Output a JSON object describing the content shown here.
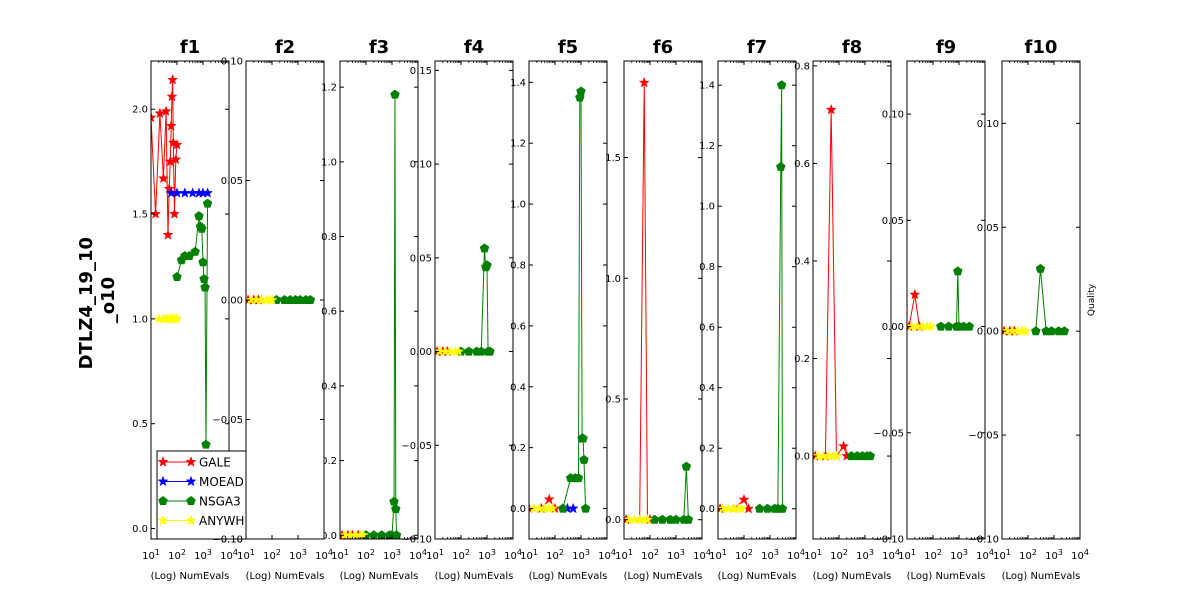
{
  "ylabel_lines": [
    "DTLZ4_19_10",
    "_o10"
  ],
  "right_label": "Quality",
  "series_colors": {
    "GALE": "#ff0000",
    "MOEAD": "#0000ff",
    "NSGA3": "#008000",
    "ANYWHERE": "#ffff00"
  },
  "legend": [
    "GALE",
    "MOEAD",
    "NSGA3",
    "ANYWH"
  ],
  "chart_data": [
    {
      "title": "f1",
      "type": "line",
      "xlabel": "(Log) NumEvals",
      "xscale": "log",
      "xlim": [
        10,
        10000
      ],
      "ylim": [
        -0.05,
        2.23
      ],
      "yticks": [
        0.0,
        0.5,
        1.0,
        1.5,
        2.0
      ],
      "ytick_labels": [
        "0.0",
        "0.5",
        "1.0",
        "1.5",
        "2.0"
      ],
      "series": [
        {
          "name": "GALE",
          "x": [
            10,
            15,
            22,
            30,
            38,
            45,
            50,
            55,
            60,
            64,
            68,
            72,
            80,
            90,
            100
          ],
          "y": [
            1.96,
            1.5,
            1.98,
            1.67,
            1.99,
            1.4,
            1.62,
            1.75,
            1.92,
            2.06,
            2.14,
            1.84,
            1.5,
            1.76,
            1.83
          ]
        },
        {
          "name": "MOEAD",
          "x": [
            60,
            100,
            200,
            400,
            700,
            1000,
            1500
          ],
          "y": [
            1.6,
            1.6,
            1.6,
            1.6,
            1.6,
            1.6,
            1.6
          ]
        },
        {
          "name": "NSGA3",
          "x": [
            100,
            150,
            200,
            300,
            500,
            700,
            800,
            900,
            1000,
            1100,
            1200,
            1300,
            1500
          ],
          "y": [
            1.2,
            1.28,
            1.3,
            1.3,
            1.32,
            1.49,
            1.44,
            1.43,
            1.27,
            1.19,
            1.15,
            0.4,
            1.55
          ]
        },
        {
          "name": "ANYWHERE",
          "x": [
            20,
            30,
            40,
            50,
            60,
            70,
            80,
            100
          ],
          "y": [
            1.0,
            1.0,
            1.0,
            1.0,
            1.0,
            1.0,
            1.0,
            1.0
          ]
        }
      ]
    },
    {
      "title": "f2",
      "type": "line",
      "xlabel": "(Log) NumEvals",
      "xscale": "log",
      "xlim": [
        10,
        10000
      ],
      "ylim": [
        -0.1,
        0.1
      ],
      "yticks": [
        -0.1,
        -0.05,
        0.0,
        0.05,
        0.1
      ],
      "ytick_labels": [
        "−0.10",
        "−0.05",
        "0.00",
        "0.05",
        "0.10"
      ],
      "series": [
        {
          "name": "GALE",
          "x": [
            12,
            20,
            30
          ],
          "y": [
            0.0,
            0.0,
            0.0
          ]
        },
        {
          "name": "NSGA3",
          "x": [
            150,
            300,
            500,
            800,
            1200,
            2000,
            3000
          ],
          "y": [
            0.0,
            0.0,
            0.0,
            0.0,
            0.0,
            0.0,
            0.0
          ]
        },
        {
          "name": "ANYWHERE",
          "x": [
            15,
            25,
            40,
            60,
            80,
            100
          ],
          "y": [
            0.0,
            0.0,
            0.0,
            0.0,
            0.0,
            0.0
          ]
        }
      ]
    },
    {
      "title": "f3",
      "type": "line",
      "xlabel": "(Log) NumEvals",
      "xscale": "log",
      "xlim": [
        10,
        10000
      ],
      "ylim": [
        -0.01,
        1.27
      ],
      "yticks": [
        0.0,
        0.2,
        0.4,
        0.6,
        0.8,
        1.0,
        1.2
      ],
      "ytick_labels": [
        "0.0",
        "0.2",
        "0.4",
        "0.6",
        "0.8",
        "1.0",
        "1.2"
      ],
      "series": [
        {
          "name": "GALE",
          "x": [
            12,
            20,
            30,
            50
          ],
          "y": [
            0.0,
            0.0,
            0.0,
            0.0
          ]
        },
        {
          "name": "NSGA3",
          "x": [
            100,
            200,
            400,
            800,
            1000,
            1200,
            1300,
            1400,
            1500
          ],
          "y": [
            0.0,
            0.0,
            0.0,
            0.0,
            0.0,
            0.09,
            1.18,
            0.07,
            0.0
          ]
        },
        {
          "name": "ANYWHERE",
          "x": [
            15,
            25,
            40,
            60,
            80
          ],
          "y": [
            0.0,
            0.0,
            0.0,
            0.0,
            0.0
          ]
        }
      ]
    },
    {
      "title": "f4",
      "type": "line",
      "xlabel": "(Log) NumEvals",
      "xscale": "log",
      "xlim": [
        10,
        10000
      ],
      "ylim": [
        -0.1,
        0.155
      ],
      "yticks": [
        -0.1,
        -0.05,
        0.0,
        0.05,
        0.1,
        0.15
      ],
      "ytick_labels": [
        "−0.10",
        "−0.05",
        "0.00",
        "0.05",
        "0.10",
        "0.15"
      ],
      "series": [
        {
          "name": "GALE",
          "x": [
            12,
            20,
            30
          ],
          "y": [
            0.0,
            0.0,
            0.0
          ]
        },
        {
          "name": "NSGA3",
          "x": [
            100,
            200,
            400,
            600,
            800,
            900,
            1000,
            1100,
            1300
          ],
          "y": [
            0.0,
            0.0,
            0.0,
            0.0,
            0.055,
            0.045,
            0.046,
            0.0,
            0.0
          ]
        },
        {
          "name": "ANYWHERE",
          "x": [
            15,
            25,
            40,
            60,
            80
          ],
          "y": [
            0.0,
            0.0,
            0.0,
            0.0,
            0.0
          ]
        }
      ]
    },
    {
      "title": "f5",
      "type": "line",
      "xlabel": "(Log) NumEvals",
      "xscale": "log",
      "xlim": [
        10,
        10000
      ],
      "ylim": [
        -0.1,
        1.47
      ],
      "yticks": [
        0.0,
        0.2,
        0.4,
        0.6,
        0.8,
        1.0,
        1.2,
        1.4
      ],
      "ytick_labels": [
        "0.0",
        "0.2",
        "0.4",
        "0.6",
        "0.8",
        "1.0",
        "1.2",
        "1.4"
      ],
      "series": [
        {
          "name": "GALE",
          "x": [
            10,
            30,
            60,
            100
          ],
          "y": [
            0.0,
            0.0,
            0.03,
            0.0
          ]
        },
        {
          "name": "MOEAD",
          "x": [
            300,
            500
          ],
          "y": [
            0.0,
            0.0
          ]
        },
        {
          "name": "NSGA3",
          "x": [
            200,
            400,
            600,
            800,
            900,
            1000,
            1100,
            1200,
            1300,
            1500
          ],
          "y": [
            0.0,
            0.1,
            0.1,
            0.1,
            1.35,
            1.37,
            0.23,
            0.23,
            0.16,
            0.0
          ]
        },
        {
          "name": "ANYWHERE",
          "x": [
            15,
            25,
            40,
            60,
            80
          ],
          "y": [
            0.0,
            0.0,
            0.0,
            0.0,
            0.0
          ]
        }
      ]
    },
    {
      "title": "f6",
      "type": "line",
      "xlabel": "(Log) NumEvals",
      "xscale": "log",
      "xlim": [
        10,
        10000
      ],
      "ylim": [
        -0.08,
        1.9
      ],
      "yticks": [
        0.0,
        0.5,
        1.0,
        1.5
      ],
      "ytick_labels": [
        "0.0",
        "0.5",
        "1.0",
        "1.5"
      ],
      "series": [
        {
          "name": "GALE",
          "x": [
            12,
            40,
            60,
            80,
            100
          ],
          "y": [
            0.0,
            0.0,
            1.81,
            0.0,
            0.0
          ]
        },
        {
          "name": "NSGA3",
          "x": [
            150,
            300,
            600,
            1000,
            2000,
            2500,
            3000
          ],
          "y": [
            0.0,
            0.0,
            0.0,
            0.0,
            0.0,
            0.22,
            0.0
          ]
        },
        {
          "name": "ANYWHERE",
          "x": [
            15,
            25,
            40,
            60,
            80
          ],
          "y": [
            0.0,
            0.0,
            0.0,
            0.0,
            0.0
          ]
        }
      ]
    },
    {
      "title": "f7",
      "type": "line",
      "xlabel": "(Log) NumEvals",
      "xscale": "log",
      "xlim": [
        10,
        10000
      ],
      "ylim": [
        -0.1,
        1.48
      ],
      "yticks": [
        0.0,
        0.2,
        0.4,
        0.6,
        0.8,
        1.0,
        1.2,
        1.4
      ],
      "ytick_labels": [
        "0.0",
        "0.2",
        "0.4",
        "0.6",
        "0.8",
        "1.0",
        "1.2",
        "1.4"
      ],
      "series": [
        {
          "name": "GALE",
          "x": [
            12,
            40,
            100,
            150
          ],
          "y": [
            0.0,
            0.0,
            0.03,
            0.0
          ]
        },
        {
          "name": "NSGA3",
          "x": [
            400,
            800,
            1500,
            2000,
            2600,
            2800,
            3000
          ],
          "y": [
            0.0,
            0.0,
            0.0,
            0.0,
            1.13,
            1.4,
            0.0
          ]
        },
        {
          "name": "ANYWHERE",
          "x": [
            15,
            25,
            40,
            60,
            80
          ],
          "y": [
            0.0,
            0.0,
            0.0,
            0.0,
            0.0
          ]
        }
      ]
    },
    {
      "title": "f8",
      "type": "line",
      "xlabel": "(Log) NumEvals",
      "xscale": "log",
      "xlim": [
        10,
        10000
      ],
      "ylim": [
        -0.17,
        0.81
      ],
      "yticks": [
        0.0,
        0.2,
        0.4,
        0.6,
        0.8
      ],
      "ytick_labels": [
        "0.0",
        "0.2",
        "0.4",
        "0.6",
        "0.8"
      ],
      "series": [
        {
          "name": "GALE",
          "x": [
            12,
            30,
            50,
            80,
            150,
            200
          ],
          "y": [
            0.0,
            0.0,
            0.71,
            0.0,
            0.02,
            0.0
          ]
        },
        {
          "name": "NSGA3",
          "x": [
            300,
            500,
            800,
            1200,
            1600
          ],
          "y": [
            0.0,
            0.0,
            0.0,
            0.0,
            0.0
          ]
        },
        {
          "name": "ANYWHERE",
          "x": [
            15,
            25,
            40,
            60,
            80
          ],
          "y": [
            0.0,
            0.0,
            0.0,
            0.0,
            0.0
          ]
        }
      ]
    },
    {
      "title": "f9",
      "type": "line",
      "xlabel": "(Log) NumEvals",
      "xscale": "log",
      "xlim": [
        10,
        10000
      ],
      "ylim": [
        -0.1,
        0.125
      ],
      "yticks": [
        -0.1,
        -0.05,
        0.0,
        0.05,
        0.1
      ],
      "ytick_labels": [
        "−0.10",
        "−0.05",
        "0.00",
        "0.05",
        "0.10"
      ],
      "series": [
        {
          "name": "GALE",
          "x": [
            12,
            20,
            30
          ],
          "y": [
            0.0,
            0.015,
            0.0
          ]
        },
        {
          "name": "NSGA3",
          "x": [
            200,
            400,
            800,
            900,
            1000,
            1500,
            2500
          ],
          "y": [
            0.0,
            0.0,
            0.0,
            0.026,
            0.0,
            0.0,
            0.0
          ]
        },
        {
          "name": "ANYWHERE",
          "x": [
            15,
            25,
            40,
            60,
            80
          ],
          "y": [
            0.0,
            0.0,
            0.0,
            0.0,
            0.0
          ]
        }
      ]
    },
    {
      "title": "f10",
      "type": "line",
      "xlabel": "(Log) NumEvals",
      "xscale": "log",
      "xlim": [
        10,
        10000
      ],
      "ylim": [
        -0.1,
        0.13
      ],
      "yticks": [
        -0.1,
        -0.05,
        0.0,
        0.05,
        0.1
      ],
      "ytick_labels": [
        "−0.10",
        "−0.05",
        "0.00",
        "0.05",
        "0.10"
      ],
      "series": [
        {
          "name": "GALE",
          "x": [
            12,
            20,
            30
          ],
          "y": [
            0.0,
            0.0,
            0.0
          ]
        },
        {
          "name": "NSGA3",
          "x": [
            200,
            300,
            500,
            800,
            1500,
            2500
          ],
          "y": [
            0.0,
            0.03,
            0.0,
            0.0,
            0.0,
            0.0
          ]
        },
        {
          "name": "ANYWHERE",
          "x": [
            15,
            25,
            40,
            60,
            80
          ],
          "y": [
            0.0,
            0.0,
            0.0,
            0.0,
            0.0
          ]
        }
      ]
    }
  ]
}
